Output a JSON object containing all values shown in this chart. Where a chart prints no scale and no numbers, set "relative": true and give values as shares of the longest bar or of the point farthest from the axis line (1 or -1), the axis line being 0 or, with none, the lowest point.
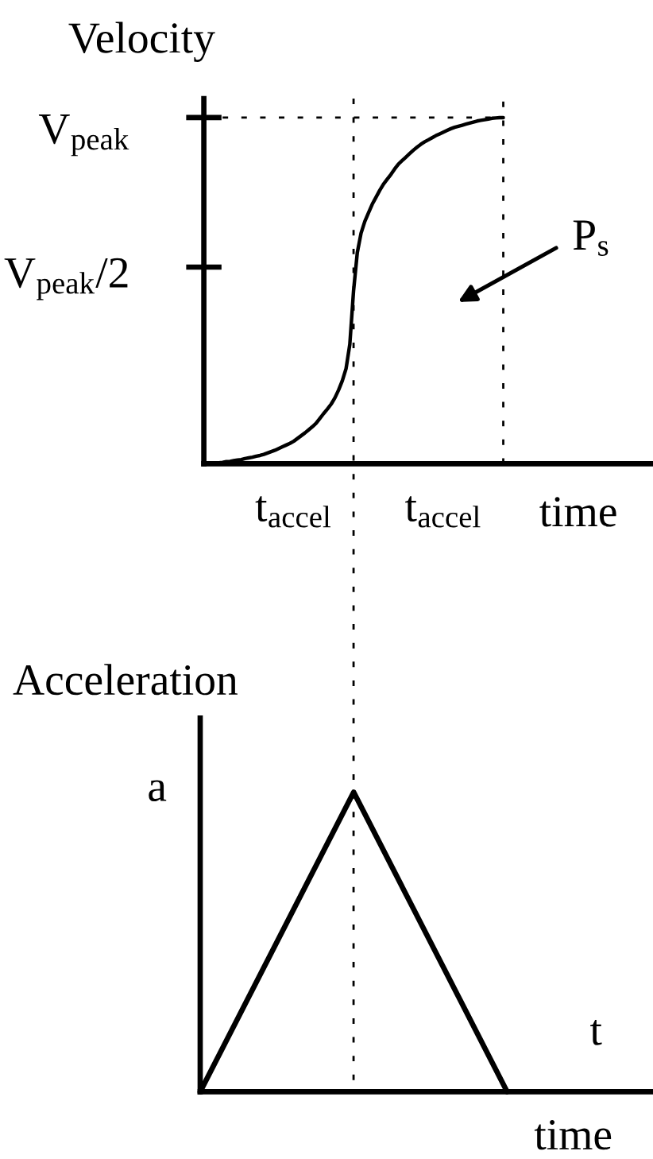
{
  "chart_data": [
    {
      "type": "line",
      "relative": true,
      "ylabel": "Velocity",
      "xlabel": "time",
      "categories": [
        null,
        null,
        null,
        null,
        null,
        null,
        null,
        null,
        null,
        null,
        null,
        null,
        null,
        null,
        null,
        null,
        null,
        null,
        null,
        null,
        null,
        null,
        null,
        null,
        "t$_{accel}$",
        null,
        null,
        null,
        null,
        null,
        null,
        null,
        null,
        null,
        null,
        null,
        null,
        null,
        null,
        null,
        null,
        null,
        null,
        null,
        null,
        null,
        null,
        null,
        null,
        null,
        null,
        null,
        null,
        null,
        null,
        null,
        null,
        null,
        null,
        null,
        null,
        null,
        null,
        null,
        "t$_{accel}$",
        null,
        null,
        null,
        null,
        null,
        null,
        null,
        null,
        null,
        null,
        null,
        null,
        null,
        null,
        null,
        null
      ],
      "series": [
        {
          "color": "#000000",
          "values": [
            0,
            0.0,
            0.001,
            0.002,
            0.003,
            0.004,
            0.006,
            0.007,
            0.009,
            0.011,
            0.012,
            0.015,
            0.017,
            0.019,
            0.022,
            0.024,
            0.027,
            0.031,
            0.035,
            0.039,
            0.044,
            0.049,
            0.054,
            0.059,
            0.065,
            0.073,
            0.081,
            0.089,
            0.098,
            0.107,
            0.117,
            0.131,
            0.145,
            0.158,
            0.172,
            0.19,
            0.213,
            0.24,
            0.275,
            0.345,
            0.5,
            0.61,
            0.666,
            0.7,
            0.725,
            0.75,
            0.77,
            0.79,
            0.808,
            0.822,
            0.836,
            0.852,
            0.866,
            0.876,
            0.886,
            0.896,
            0.906,
            0.915,
            0.923,
            0.93,
            0.936,
            0.942,
            0.948,
            0.953,
            0.958,
            0.963,
            0.968,
            0.972,
            0.975,
            0.978,
            0.981,
            0.984,
            0.987,
            0.99,
            0.992,
            0.994,
            0.996,
            0.998,
            0.999,
            1.0,
            1.0
          ]
        }
      ],
      "annotations": [
        "V$_{peak}$",
        "V$_{peak}$/2",
        "P$_{s}$"
      ]
    },
    {
      "type": "line",
      "relative": true,
      "ylabel": "Acceleration",
      "xlabel": "time",
      "categories": [
        null,
        null,
        null
      ],
      "series": [
        {
          "color": "#000000",
          "values": [
            0,
            1,
            0
          ]
        }
      ],
      "annotations": [
        "a",
        "t"
      ]
    }
  ]
}
